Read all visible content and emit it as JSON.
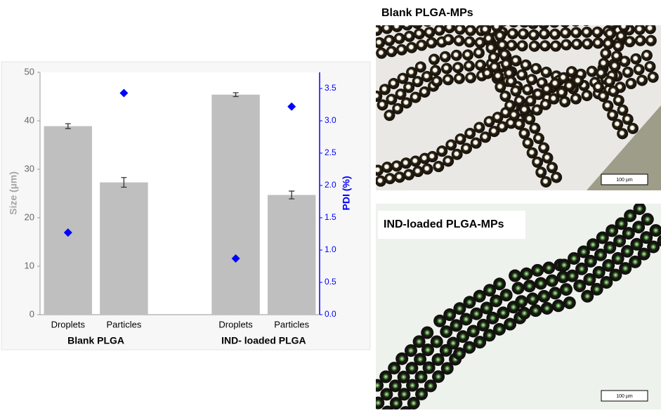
{
  "chart_data": {
    "type": "bar",
    "categories": [
      "Droplets",
      "Particles",
      null,
      "Droplets",
      "Particles"
    ],
    "group_labels": [
      "Blank PLGA",
      "IND- loaded PLGA"
    ],
    "ylabel": "Size (µm)",
    "y2label": "PDI (%)",
    "series": [
      {
        "type": "bar",
        "color": "#bfbfbf",
        "values": [
          38.9,
          27.3,
          null,
          45.4,
          24.7
        ],
        "errors": [
          0.5,
          1.0,
          null,
          0.4,
          0.8
        ]
      },
      {
        "type": "scatter",
        "axis": "y2",
        "color": "#0000ff",
        "values": [
          1.27,
          3.43,
          null,
          0.87,
          3.22
        ]
      }
    ],
    "ylim": [
      0,
      50
    ],
    "yticks": [
      0,
      10,
      20,
      30,
      40,
      50
    ],
    "y2lim": [
      0,
      3.75
    ],
    "y2ticks": [
      {
        "value": 0,
        "label": "0.0"
      },
      {
        "value": 0.5,
        "label": "0.5"
      },
      {
        "value": 1,
        "label": "1.0"
      },
      {
        "value": 1.5,
        "label": "1.5"
      },
      {
        "value": 2,
        "label": "2.0"
      },
      {
        "value": 2.5,
        "label": "2.5"
      },
      {
        "value": 3,
        "label": "3.0"
      },
      {
        "value": 3.5,
        "label": "3.5"
      }
    ]
  },
  "images": [
    {
      "label": "Blank PLGA-MPs",
      "scale_bar": "100 µm"
    },
    {
      "label": "IND-loaded PLGA-MPs",
      "scale_bar": "100 µm"
    }
  ]
}
